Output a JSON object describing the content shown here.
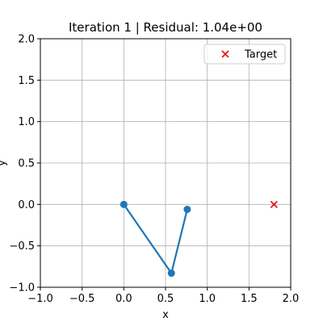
{
  "chart_data": {
    "type": "line",
    "title": "Iteration 1 | Residual: 1.04e+00",
    "xlabel": "x",
    "ylabel": "y",
    "xlim": [
      -1.0,
      2.0
    ],
    "ylim": [
      -1.0,
      2.0
    ],
    "x_ticks": [
      -1.0,
      -0.5,
      0.0,
      0.5,
      1.0,
      1.5,
      2.0
    ],
    "y_ticks": [
      -1.0,
      -0.5,
      0.0,
      0.5,
      1.0,
      1.5,
      2.0
    ],
    "x_tick_labels": [
      "−1.0",
      "−0.5",
      "0.0",
      "0.5",
      "1.0",
      "1.5",
      "2.0"
    ],
    "y_tick_labels": [
      "−1.0",
      "−0.5",
      "0.0",
      "0.5",
      "1.0",
      "1.5",
      "2.0"
    ],
    "grid": true,
    "legend": {
      "position": "top-right",
      "entries": [
        "Target"
      ]
    },
    "series": [
      {
        "name": "",
        "kind": "line-with-markers",
        "color": "#1f77b4",
        "x": [
          0.0,
          0.57,
          0.76
        ],
        "y": [
          0.0,
          -0.83,
          -0.06
        ]
      },
      {
        "name": "Target",
        "kind": "scatter-x",
        "color": "#e41a1c",
        "x": [
          1.8
        ],
        "y": [
          0.0
        ]
      }
    ]
  }
}
